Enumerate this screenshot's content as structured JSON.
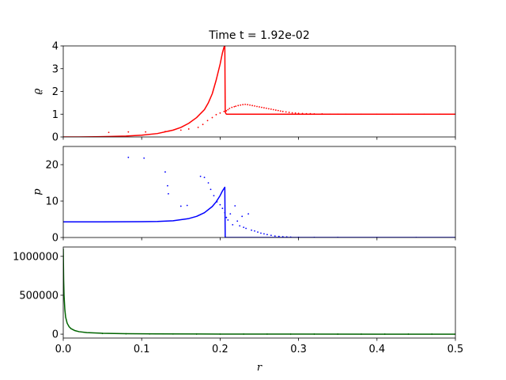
{
  "chart_data": {
    "title": "Time t = 1.92e-02",
    "xlabel": "r",
    "xlim": [
      0,
      0.5
    ],
    "xticks": [
      0.0,
      0.1,
      0.2,
      0.3,
      0.4,
      0.5
    ],
    "xtick_labels": [
      "0.0",
      "0.1",
      "0.2",
      "0.3",
      "0.4",
      "0.5"
    ],
    "grid": false,
    "panels": [
      {
        "type": "line+scatter",
        "ylabel": "ϱ",
        "ylim": [
          0,
          4
        ],
        "yticks": [
          0,
          1,
          2,
          3,
          4
        ],
        "ytick_labels": [
          "0",
          "1",
          "2",
          "3",
          "4"
        ],
        "color": "#ff0000",
        "line": {
          "x": [
            0.0,
            0.02,
            0.04,
            0.06,
            0.08,
            0.1,
            0.12,
            0.14,
            0.15,
            0.16,
            0.17,
            0.18,
            0.185,
            0.19,
            0.195,
            0.2,
            0.203,
            0.205,
            0.206,
            0.2065,
            0.207,
            0.208,
            0.209,
            0.21,
            0.212,
            0.215,
            0.22,
            0.23,
            0.25,
            0.3,
            0.35,
            0.4,
            0.45,
            0.5
          ],
          "y": [
            0.0,
            0.0,
            0.01,
            0.02,
            0.04,
            0.08,
            0.15,
            0.3,
            0.42,
            0.6,
            0.85,
            1.2,
            1.5,
            1.9,
            2.5,
            3.2,
            3.7,
            3.95,
            4.0,
            1.2,
            1.05,
            1.0,
            1.0,
            1.0,
            1.0,
            1.0,
            1.0,
            1.0,
            1.0,
            1.0,
            1.0,
            1.0,
            1.0,
            1.0
          ]
        },
        "points": {
          "x": [
            0.058,
            0.083,
            0.105,
            0.13,
            0.135,
            0.15,
            0.16,
            0.172,
            0.178,
            0.184,
            0.19,
            0.195,
            0.2,
            0.205,
            0.208,
            0.21,
            0.212,
            0.215,
            0.218,
            0.22,
            0.223,
            0.226,
            0.229,
            0.232,
            0.235,
            0.238,
            0.241,
            0.244,
            0.247,
            0.25,
            0.253,
            0.256,
            0.259,
            0.262,
            0.265,
            0.268,
            0.271,
            0.274,
            0.277,
            0.28,
            0.284,
            0.288,
            0.292,
            0.296,
            0.3,
            0.305,
            0.31,
            0.315,
            0.32,
            0.33,
            0.34,
            0.35,
            0.36,
            0.38,
            0.4,
            0.42,
            0.44,
            0.46,
            0.48,
            0.5
          ],
          "y": [
            0.2,
            0.22,
            0.22,
            0.24,
            0.26,
            0.3,
            0.35,
            0.42,
            0.55,
            0.72,
            0.85,
            0.98,
            1.05,
            1.12,
            1.15,
            1.2,
            1.25,
            1.3,
            1.33,
            1.35,
            1.38,
            1.4,
            1.42,
            1.43,
            1.42,
            1.4,
            1.38,
            1.36,
            1.34,
            1.32,
            1.3,
            1.28,
            1.26,
            1.24,
            1.22,
            1.2,
            1.18,
            1.16,
            1.14,
            1.12,
            1.1,
            1.08,
            1.06,
            1.05,
            1.04,
            1.03,
            1.02,
            1.02,
            1.01,
            1.01,
            1.0,
            1.0,
            1.0,
            1.0,
            1.0,
            1.0,
            1.0,
            1.0,
            1.0,
            1.0
          ]
        }
      },
      {
        "type": "line+scatter",
        "ylabel": "p",
        "ylim": [
          0,
          25
        ],
        "yticks": [
          0,
          10,
          20
        ],
        "ytick_labels": [
          "0",
          "10",
          "20"
        ],
        "color": "#0000ff",
        "line": {
          "x": [
            0.0,
            0.05,
            0.1,
            0.12,
            0.14,
            0.16,
            0.17,
            0.18,
            0.19,
            0.195,
            0.2,
            0.203,
            0.206,
            0.2065,
            0.207,
            0.21,
            0.25,
            0.3,
            0.35,
            0.4,
            0.45,
            0.5
          ],
          "y": [
            4.3,
            4.3,
            4.35,
            4.4,
            4.6,
            5.2,
            5.8,
            6.8,
            8.5,
            9.8,
            11.5,
            12.8,
            13.8,
            0.0,
            0.0,
            0.0,
            0.0,
            0.0,
            0.0,
            0.0,
            0.0,
            0.0
          ]
        },
        "points": {
          "x": [
            0.083,
            0.103,
            0.13,
            0.133,
            0.134,
            0.15,
            0.158,
            0.175,
            0.18,
            0.185,
            0.188,
            0.192,
            0.196,
            0.2,
            0.203,
            0.206,
            0.208,
            0.21,
            0.213,
            0.216,
            0.219,
            0.222,
            0.225,
            0.228,
            0.23,
            0.233,
            0.236,
            0.24,
            0.244,
            0.248,
            0.252,
            0.256,
            0.26,
            0.265,
            0.27,
            0.275,
            0.28,
            0.285,
            0.29,
            0.3,
            0.32,
            0.35,
            0.4,
            0.45,
            0.5
          ],
          "y": [
            22.0,
            21.8,
            18.0,
            14.2,
            12.0,
            8.6,
            8.8,
            16.8,
            16.5,
            15.0,
            13.2,
            11.5,
            9.8,
            9.0,
            8.0,
            6.8,
            5.5,
            4.8,
            6.5,
            3.5,
            8.7,
            4.5,
            3.2,
            5.8,
            2.8,
            2.5,
            6.5,
            2.0,
            1.8,
            1.5,
            1.2,
            1.0,
            0.8,
            0.6,
            0.4,
            0.3,
            0.2,
            0.15,
            0.1,
            0.05,
            0.02,
            0.01,
            0.0,
            0.0,
            0.0
          ]
        }
      },
      {
        "type": "line+scatter",
        "ylabel": "",
        "ylim": [
          -50000,
          1120000
        ],
        "yticks": [
          0,
          500000,
          1000000
        ],
        "ytick_labels": [
          "0",
          "500000",
          "1000000"
        ],
        "color": "#006400",
        "line": {
          "x": [
            0.0,
            0.0005,
            0.001,
            0.002,
            0.003,
            0.005,
            0.0075,
            0.01,
            0.015,
            0.02,
            0.03,
            0.05,
            0.08,
            0.12,
            0.2,
            0.3,
            0.4,
            0.5
          ],
          "y": [
            1100000,
            700000,
            500000,
            320000,
            220000,
            140000,
            95000,
            70000,
            45000,
            32000,
            20000,
            11000,
            6000,
            3500,
            1500,
            500,
            200,
            100
          ]
        },
        "points": {
          "x": [
            0.05,
            0.08,
            0.11,
            0.14,
            0.17,
            0.2,
            0.23,
            0.26,
            0.29,
            0.32,
            0.35,
            0.38,
            0.41,
            0.44,
            0.47,
            0.5
          ],
          "y": [
            9000,
            5000,
            3000,
            2000,
            1500,
            1000,
            800,
            600,
            400,
            300,
            200,
            150,
            100,
            100,
            100,
            100
          ]
        }
      }
    ]
  }
}
